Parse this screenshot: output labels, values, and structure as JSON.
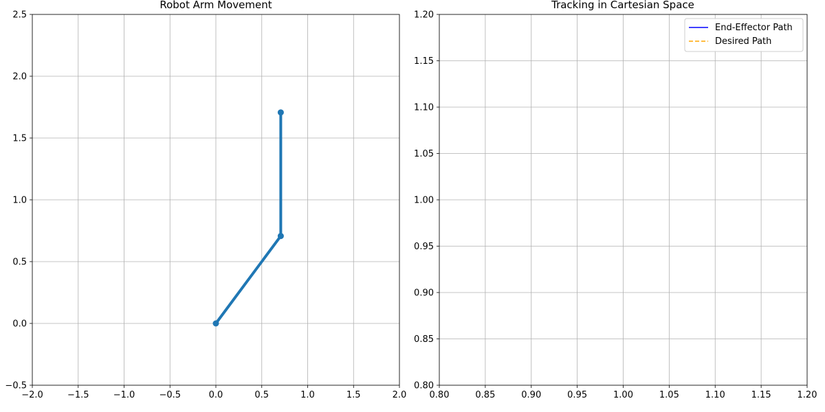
{
  "chart_data": [
    {
      "type": "line",
      "title": "Robot Arm Movement",
      "xlabel": "",
      "ylabel": "",
      "xlim": [
        -2.0,
        2.0
      ],
      "ylim": [
        -0.5,
        2.5
      ],
      "xticks": [
        -2.0,
        -1.5,
        -1.0,
        -0.5,
        0.0,
        0.5,
        1.0,
        1.5,
        2.0
      ],
      "xtick_labels": [
        "−2.0",
        "−1.5",
        "−1.0",
        "−0.5",
        "0.0",
        "0.5",
        "1.0",
        "1.5",
        "2.0"
      ],
      "yticks": [
        -0.5,
        0.0,
        0.5,
        1.0,
        1.5,
        2.0,
        2.5
      ],
      "ytick_labels": [
        "−0.5",
        "0.0",
        "0.5",
        "1.0",
        "1.5",
        "2.0",
        "2.5"
      ],
      "grid": true,
      "series": [
        {
          "x": [
            0.0,
            0.707,
            0.707
          ],
          "y": [
            0.0,
            0.707,
            1.707
          ],
          "color": "#1f77b4",
          "style": "solid",
          "markers": true
        }
      ]
    },
    {
      "type": "line",
      "title": "Tracking in Cartesian Space",
      "xlabel": "",
      "ylabel": "",
      "xlim": [
        0.8,
        1.2
      ],
      "ylim": [
        0.8,
        1.2
      ],
      "xticks": [
        0.8,
        0.85,
        0.9,
        0.95,
        1.0,
        1.05,
        1.1,
        1.15,
        1.2
      ],
      "xtick_labels": [
        "0.80",
        "0.85",
        "0.90",
        "0.95",
        "1.00",
        "1.05",
        "1.10",
        "1.15",
        "1.20"
      ],
      "yticks": [
        0.8,
        0.85,
        0.9,
        0.95,
        1.0,
        1.05,
        1.1,
        1.15,
        1.2
      ],
      "ytick_labels": [
        "0.80",
        "0.85",
        "0.90",
        "0.95",
        "1.00",
        "1.05",
        "1.10",
        "1.15",
        "1.20"
      ],
      "grid": true,
      "legend": "top-right",
      "series": [
        {
          "name": "End-Effector Path",
          "x": [],
          "y": [],
          "color": "#0000ff",
          "style": "solid"
        },
        {
          "name": "Desired Path",
          "x": [],
          "y": [],
          "color": "#ffa500",
          "style": "dashed"
        }
      ]
    }
  ]
}
